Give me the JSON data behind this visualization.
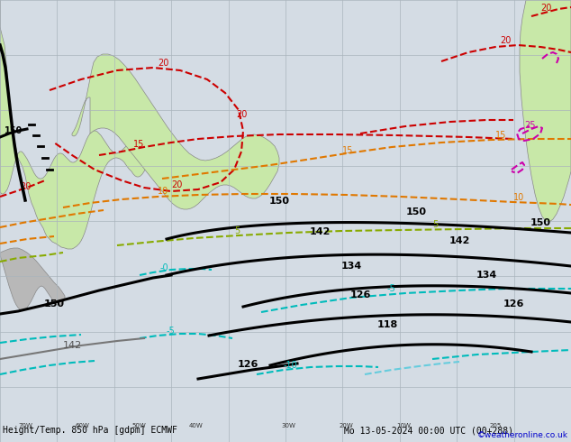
{
  "title_bottom": "Height/Temp. 850 hPa [gdpm] ECMWF",
  "date_str": "Mo 13-05-2024 00:00 UTC (00+288)",
  "credit": "©weatheronline.co.uk",
  "bg_ocean": "#d4dce4",
  "bg_land": "#c8e8a8",
  "bg_land_gray": "#b8b8b8",
  "grid_color": "#aab4bc",
  "credit_color": "#0000cc",
  "figsize": [
    6.34,
    4.9
  ],
  "dpi": 100
}
